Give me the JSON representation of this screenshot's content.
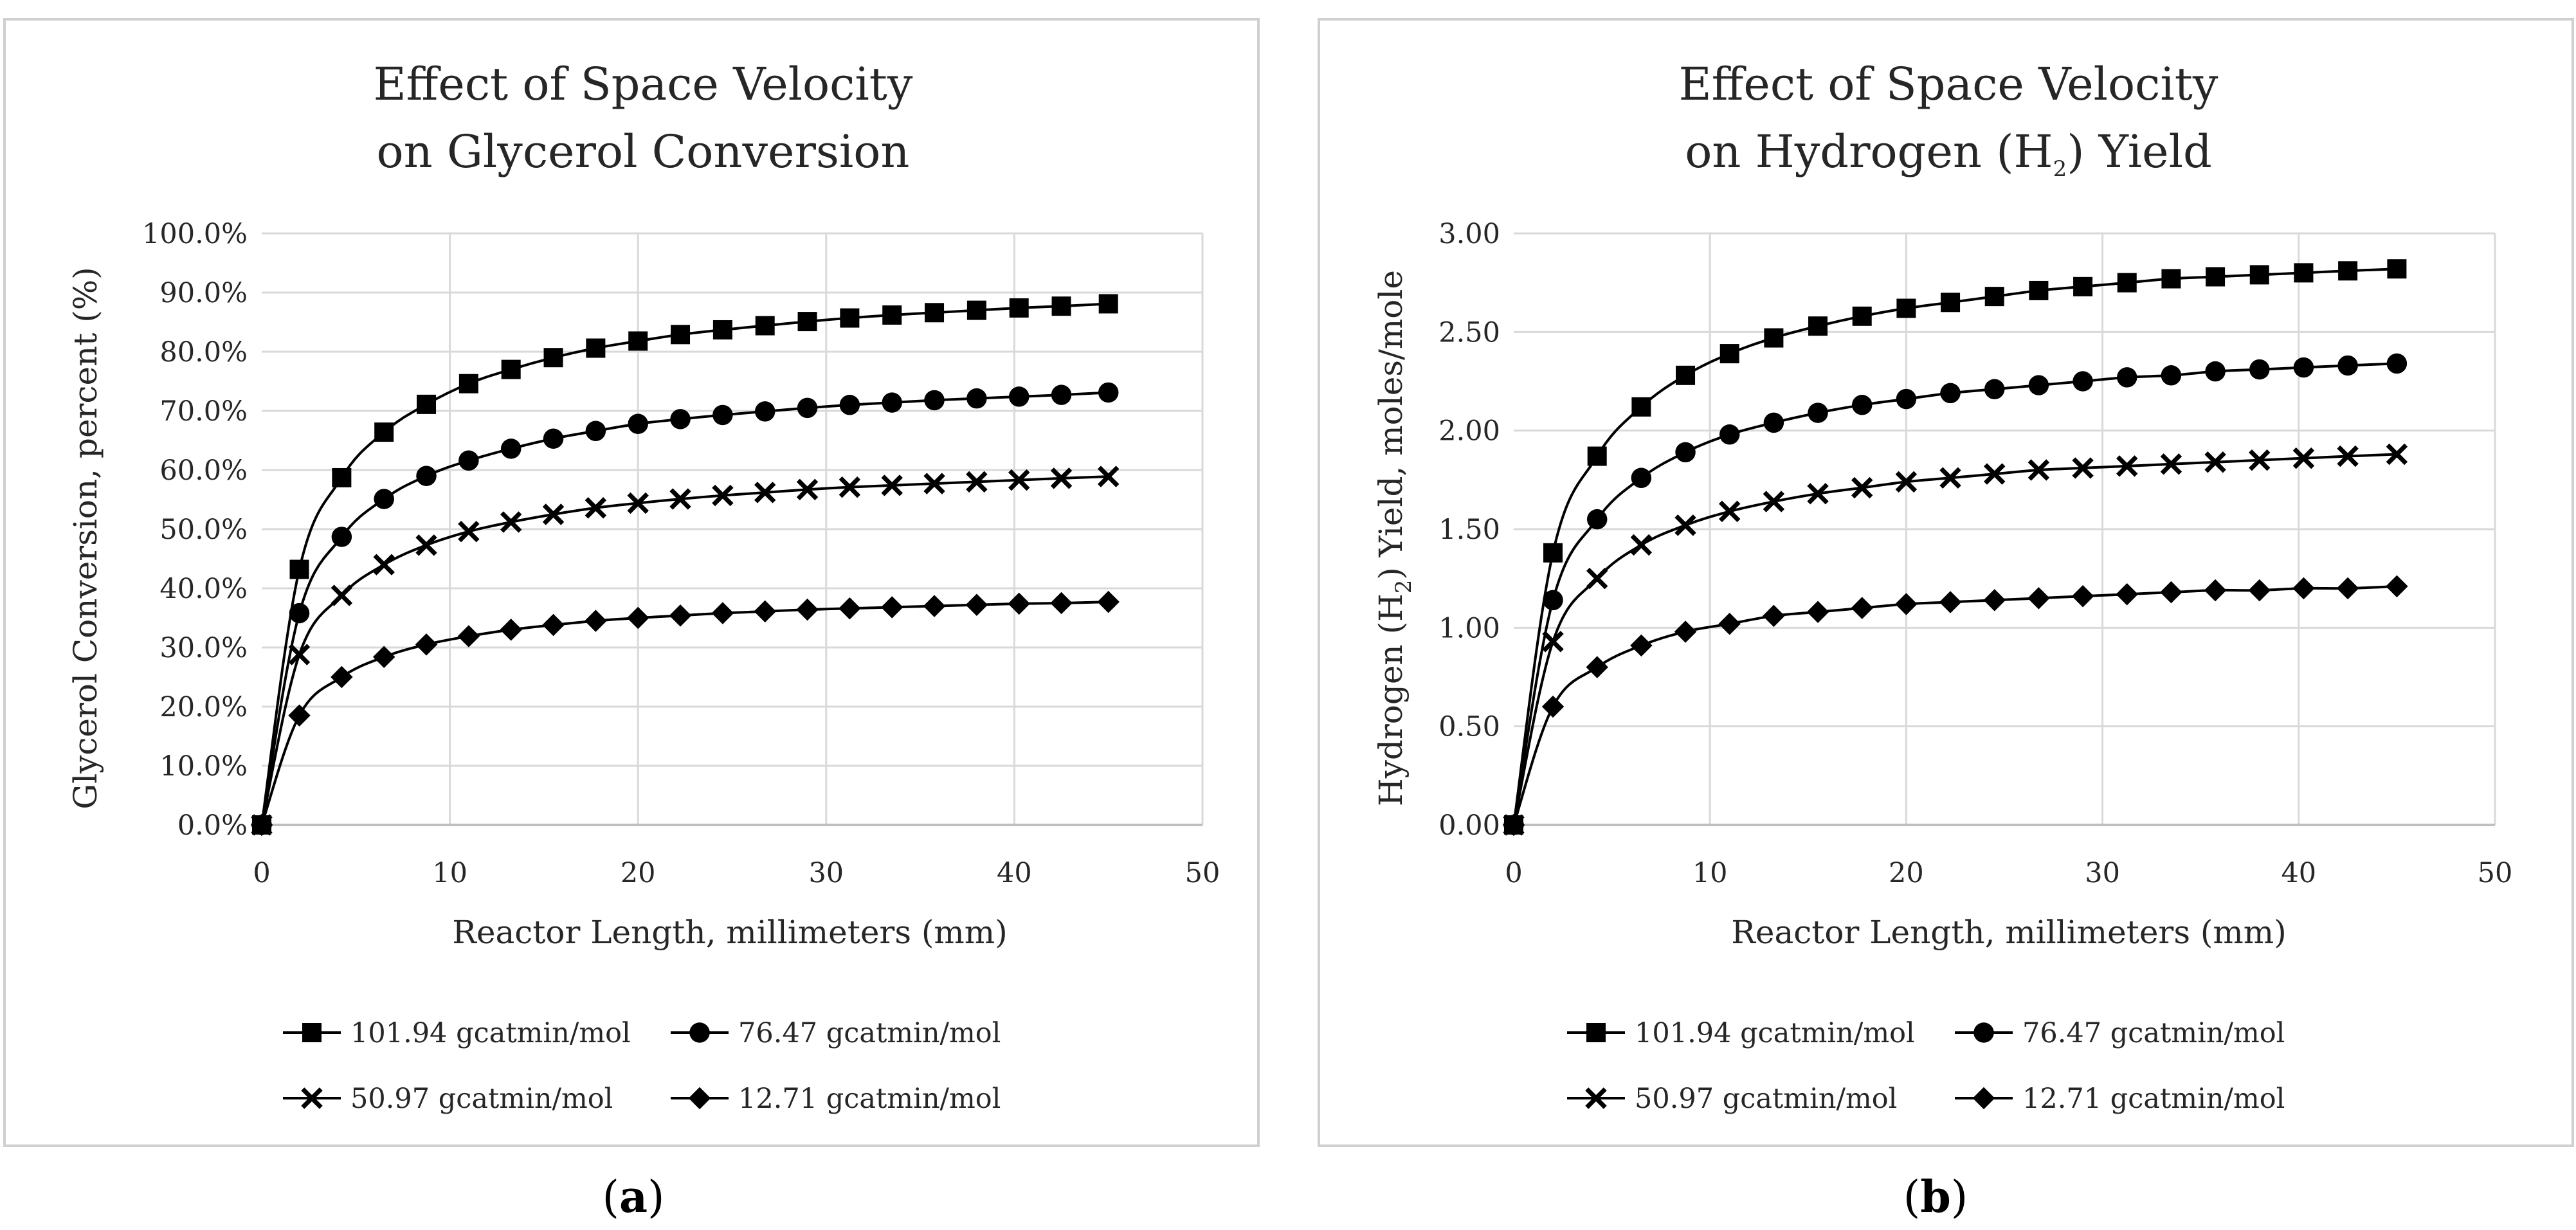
{
  "chart_data": [
    {
      "type": "line",
      "panel": "a",
      "caption": [
        "(",
        "a",
        ")"
      ],
      "title": [
        "Effect of Space Velocity",
        "on Glycerol Conversion"
      ],
      "xlabel": "Reactor Length, millimeters (mm)",
      "ylabel": "Glycerol Conversion, percent (%)",
      "xlim": [
        0,
        50
      ],
      "ylim": [
        0,
        1
      ],
      "xticks": [
        0,
        10,
        20,
        30,
        40,
        50
      ],
      "xtick_labels": [
        "0",
        "10",
        "20",
        "30",
        "40",
        "50"
      ],
      "yticks": [
        0,
        0.1,
        0.2,
        0.3,
        0.4,
        0.5,
        0.6,
        0.7,
        0.8,
        0.9,
        1.0
      ],
      "ytick_labels": [
        "0.0%",
        "10.0%",
        "20.0%",
        "30.0%",
        "40.0%",
        "50.0%",
        "60.0%",
        "70.0%",
        "80.0%",
        "90.0%",
        "100.0%"
      ],
      "grid": "vertical",
      "legend_position": "bottom",
      "x": [
        0,
        2,
        4.25,
        6.5,
        8.75,
        11,
        13.25,
        15.5,
        17.75,
        20,
        22.25,
        24.5,
        26.75,
        29,
        31.25,
        33.5,
        35.75,
        38,
        40.25,
        42.5,
        45
      ],
      "series": [
        {
          "name": "101.94 gcatmin/mol",
          "marker": "square",
          "values": [
            0.0,
            0.432,
            0.587,
            0.664,
            0.711,
            0.746,
            0.77,
            0.79,
            0.806,
            0.818,
            0.829,
            0.837,
            0.844,
            0.851,
            0.857,
            0.862,
            0.866,
            0.87,
            0.874,
            0.877,
            0.881
          ]
        },
        {
          "name": "76.47 gcatmin/mol",
          "marker": "circle",
          "values": [
            0.0,
            0.358,
            0.487,
            0.551,
            0.59,
            0.616,
            0.636,
            0.653,
            0.666,
            0.678,
            0.686,
            0.693,
            0.699,
            0.705,
            0.71,
            0.714,
            0.718,
            0.721,
            0.724,
            0.727,
            0.731
          ]
        },
        {
          "name": "50.97 gcatmin/mol",
          "marker": "cross",
          "values": [
            0.0,
            0.288,
            0.388,
            0.44,
            0.473,
            0.496,
            0.512,
            0.525,
            0.536,
            0.544,
            0.551,
            0.557,
            0.562,
            0.567,
            0.571,
            0.574,
            0.577,
            0.58,
            0.583,
            0.586,
            0.589
          ]
        },
        {
          "name": "12.71 gcatmin/mol",
          "marker": "diamond",
          "values": [
            0.0,
            0.185,
            0.25,
            0.284,
            0.305,
            0.319,
            0.33,
            0.338,
            0.345,
            0.35,
            0.354,
            0.358,
            0.361,
            0.364,
            0.366,
            0.368,
            0.37,
            0.372,
            0.374,
            0.375,
            0.377
          ]
        }
      ]
    },
    {
      "type": "line",
      "panel": "b",
      "caption": [
        "(",
        "b",
        ")"
      ],
      "title": [
        "Effect of Space Velocity",
        "on Hydrogen (H",
        "2",
        ") Yield"
      ],
      "xlabel": "Reactor Length, millimeters (mm)",
      "ylabel": [
        "Hydrogen (H",
        "2",
        ") Yield, moles/mole"
      ],
      "xlim": [
        0,
        50
      ],
      "ylim": [
        0,
        3
      ],
      "xticks": [
        0,
        10,
        20,
        30,
        40,
        50
      ],
      "xtick_labels": [
        "0",
        "10",
        "20",
        "30",
        "40",
        "50"
      ],
      "yticks": [
        0,
        0.5,
        1.0,
        1.5,
        2.0,
        2.5,
        3.0
      ],
      "ytick_labels": [
        "0.00",
        "0.50",
        "1.00",
        "1.50",
        "2.00",
        "2.50",
        "3.00"
      ],
      "grid": "both",
      "legend_position": "bottom",
      "x": [
        0,
        2,
        4.25,
        6.5,
        8.75,
        11,
        13.25,
        15.5,
        17.75,
        20,
        22.25,
        24.5,
        26.75,
        29,
        31.25,
        33.5,
        35.75,
        38,
        40.25,
        42.5,
        45
      ],
      "series": [
        {
          "name": "101.94 gcatmin/mol",
          "marker": "square",
          "values": [
            0.0,
            1.38,
            1.87,
            2.12,
            2.28,
            2.39,
            2.47,
            2.53,
            2.58,
            2.62,
            2.65,
            2.68,
            2.71,
            2.73,
            2.75,
            2.77,
            2.78,
            2.79,
            2.8,
            2.81,
            2.82
          ]
        },
        {
          "name": "76.47 gcatmin/mol",
          "marker": "circle",
          "values": [
            0.0,
            1.14,
            1.55,
            1.76,
            1.89,
            1.98,
            2.04,
            2.09,
            2.13,
            2.16,
            2.19,
            2.21,
            2.23,
            2.25,
            2.27,
            2.28,
            2.3,
            2.31,
            2.32,
            2.33,
            2.34
          ]
        },
        {
          "name": "50.97 gcatmin/mol",
          "marker": "cross",
          "values": [
            0.0,
            0.93,
            1.25,
            1.42,
            1.52,
            1.59,
            1.64,
            1.68,
            1.71,
            1.74,
            1.76,
            1.78,
            1.8,
            1.81,
            1.82,
            1.83,
            1.84,
            1.85,
            1.86,
            1.87,
            1.88
          ]
        },
        {
          "name": "12.71 gcatmin/mol",
          "marker": "diamond",
          "values": [
            0.0,
            0.6,
            0.8,
            0.91,
            0.98,
            1.02,
            1.06,
            1.08,
            1.1,
            1.12,
            1.13,
            1.14,
            1.15,
            1.16,
            1.17,
            1.18,
            1.19,
            1.19,
            1.2,
            1.2,
            1.21
          ]
        }
      ]
    }
  ]
}
